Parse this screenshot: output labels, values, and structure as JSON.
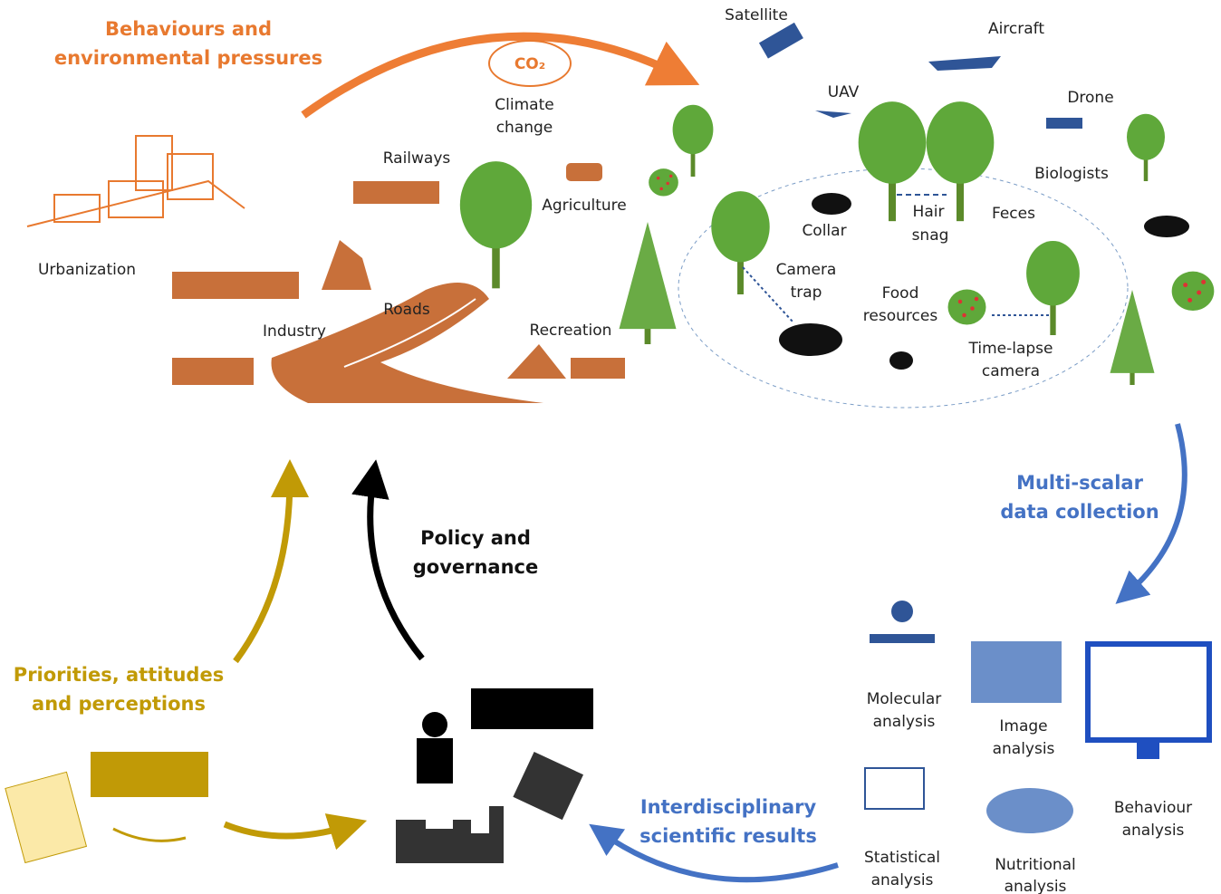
{
  "pressures": {
    "title": [
      "Behaviours and",
      "environmental pressures"
    ],
    "co2": "CO₂",
    "climate_change": [
      "Climate",
      "change"
    ],
    "railways": "Railways",
    "agriculture": "Agriculture",
    "urbanization": "Urbanization",
    "industry": "Industry",
    "roads": "Roads",
    "recreation": "Recreation"
  },
  "collection": {
    "title": [
      "Multi-scalar",
      "data collection"
    ],
    "satellite": "Satellite",
    "aircraft": "Aircraft",
    "uav": "UAV",
    "drone": "Drone",
    "biologists": "Biologists",
    "collar": "Collar",
    "hair_snag": [
      "Hair",
      "snag"
    ],
    "feces": "Feces",
    "camera_trap": [
      "Camera",
      "trap"
    ],
    "food_resources": [
      "Food",
      "resources"
    ],
    "time_lapse_camera": [
      "Time-lapse",
      "camera"
    ]
  },
  "analysis": {
    "molecular": [
      "Molecular",
      "analysis"
    ],
    "image": [
      "Image",
      "analysis"
    ],
    "behaviour": [
      "Behaviour",
      "analysis"
    ],
    "statistical": [
      "Statistical",
      "analysis"
    ],
    "nutritional": [
      "Nutritional",
      "analysis"
    ]
  },
  "results": {
    "title": [
      "Interdisciplinary",
      "scientific results"
    ]
  },
  "policy": {
    "title": [
      "Policy and",
      "governance"
    ]
  },
  "society": {
    "title": [
      "Priorities, attitudes",
      "and perceptions"
    ]
  }
}
